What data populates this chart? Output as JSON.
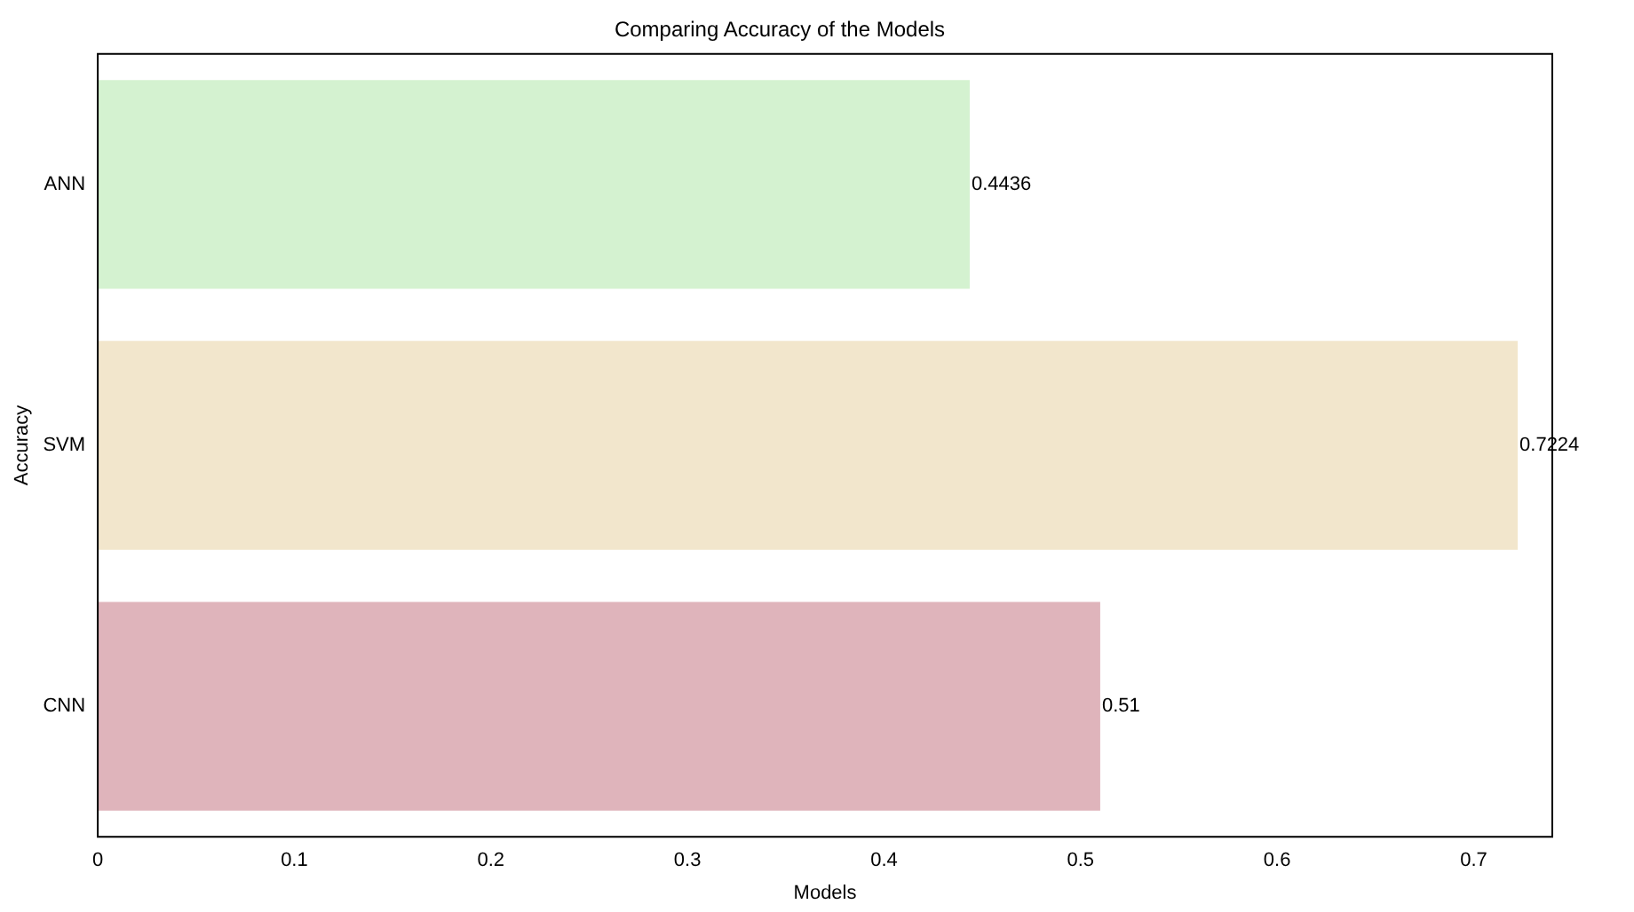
{
  "chart_data": {
    "type": "bar",
    "orientation": "horizontal",
    "title": "Comparing Accuracy of the Models",
    "xlabel": "Models",
    "ylabel": "Accuracy",
    "categories": [
      "ANN",
      "SVM",
      "CNN"
    ],
    "values": [
      0.4436,
      0.7224,
      0.51
    ],
    "colors": [
      "#d4f2d0",
      "#f2e6cc",
      "#dfb4bb"
    ],
    "xlim": [
      0,
      0.74
    ],
    "xticks": [
      0,
      0.1,
      0.2,
      0.3,
      0.4,
      0.5,
      0.6,
      0.7
    ],
    "data_labels": true,
    "grid": false,
    "legend": false
  }
}
